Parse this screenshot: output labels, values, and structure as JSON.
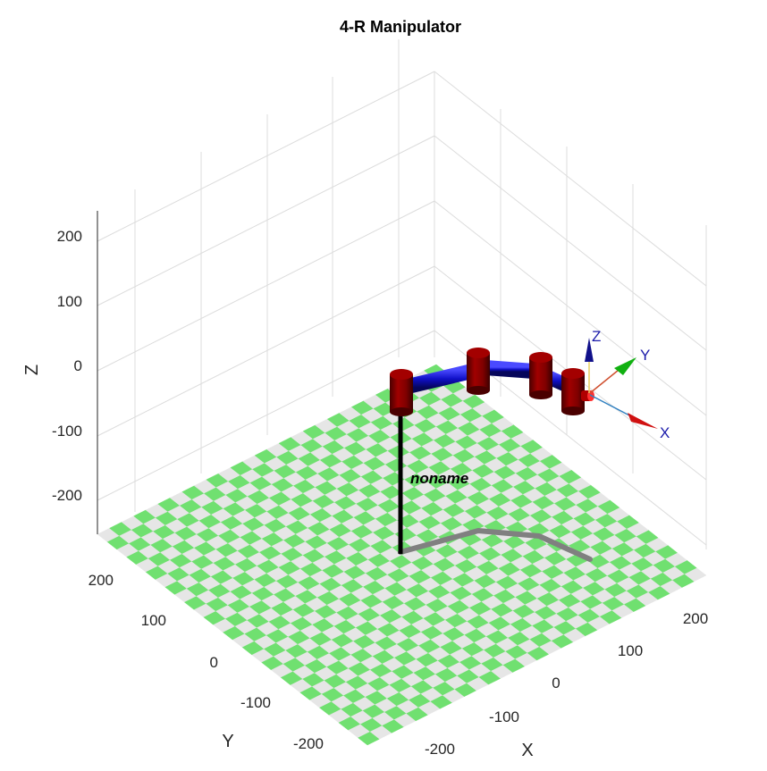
{
  "title": "4-R Manipulator",
  "robot_name": "noname",
  "axes": {
    "x": {
      "label": "X",
      "ticks": [
        "-200",
        "-100",
        "0",
        "100",
        "200"
      ]
    },
    "y": {
      "label": "Y",
      "ticks": [
        "-200",
        "-100",
        "0",
        "100",
        "200"
      ]
    },
    "z": {
      "label": "Z",
      "ticks": [
        "-200",
        "-100",
        "0",
        "100",
        "200"
      ]
    }
  },
  "frame_axes": {
    "x": "X",
    "y": "Y",
    "z": "Z"
  },
  "colors": {
    "checker_a": "#70e070",
    "checker_b": "#e6e6e6",
    "links": "#1010c8",
    "joints": "#800000",
    "pole": "#000000",
    "shadow": "#808080",
    "grid": "#dcdcdc",
    "frame_x": "#d01010",
    "frame_y": "#10b010",
    "frame_z": "#10108a",
    "frame_text": "#1a1aaa"
  }
}
